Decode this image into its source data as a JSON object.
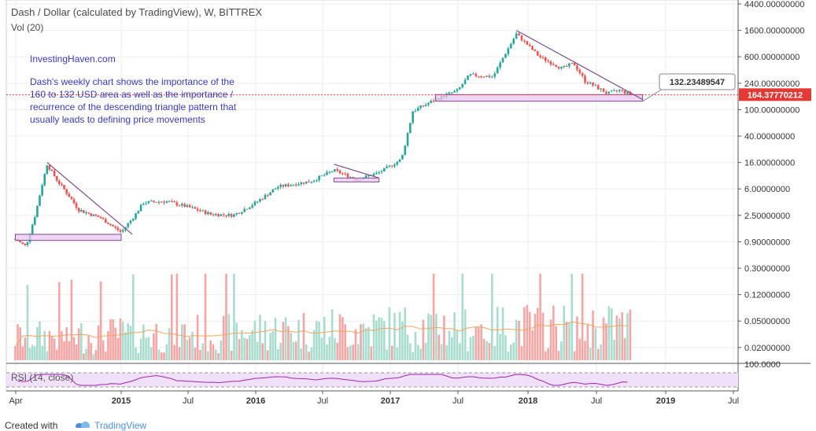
{
  "header": {
    "title": "Dash / Dollar (calculated by TradingView), W, BITTREX",
    "vol": "Vol (20)"
  },
  "annotation": {
    "brand": "InvestingHaven.com",
    "note": "Dash's weekly chart shows the importance of the 160 to 132 USD area as well as the importance / recurrence of the descending triangle pattern that usually leads to defining price movements"
  },
  "footer": {
    "created": "Created with",
    "brand": "TradingView"
  },
  "colors": {
    "up": "#26a69a",
    "down": "#ef5350",
    "vol_ma": "#f4a460",
    "rsi": "#9c27b0",
    "zone": "#e8c8f0",
    "pattern": "#7e4a8c",
    "price_label": "#e53935"
  },
  "chart_data": {
    "type": "candlestick",
    "title": "Dash / Dollar (calculated by TradingView), W, BITTREX",
    "scale": "log",
    "y_ticks": [
      "4400.00000000",
      "1600.00000000",
      "600.00000000",
      "240.00000000",
      "100.00000000",
      "40.00000000",
      "16.00000000",
      "6.00000000",
      "2.50000000",
      "0.90000000",
      "0.30000000",
      "0.12000000",
      "0.05000000",
      "0.02000000"
    ],
    "x_ticks": [
      "Apr",
      "2015",
      "Jul",
      "2016",
      "Jul",
      "2017",
      "Jul",
      "2018",
      "Jul",
      "2019",
      "Jul"
    ],
    "price_path": [
      [
        "2014-03",
        1.0
      ],
      [
        "2014-04",
        0.75
      ],
      [
        "2014-05",
        3.0
      ],
      [
        "2014-06",
        15.0
      ],
      [
        "2014-07",
        8.0
      ],
      [
        "2014-09",
        3.0
      ],
      [
        "2014-11",
        2.3
      ],
      [
        "2015-01",
        1.3
      ],
      [
        "2015-03",
        3.8
      ],
      [
        "2015-05",
        4.0
      ],
      [
        "2015-07",
        3.3
      ],
      [
        "2015-09",
        2.6
      ],
      [
        "2015-11",
        2.5
      ],
      [
        "2016-01",
        3.8
      ],
      [
        "2016-03",
        6.5
      ],
      [
        "2016-06",
        8.0
      ],
      [
        "2016-08",
        12.0
      ],
      [
        "2016-10",
        8.5
      ],
      [
        "2016-12",
        11.0
      ],
      [
        "2017-02",
        18.0
      ],
      [
        "2017-03",
        95.0
      ],
      [
        "2017-05",
        140.0
      ],
      [
        "2017-07",
        190.0
      ],
      [
        "2017-08",
        320.0
      ],
      [
        "2017-10",
        300.0
      ],
      [
        "2017-12",
        1400.0
      ],
      [
        "2018-02",
        600.0
      ],
      [
        "2018-04",
        400.0
      ],
      [
        "2018-05",
        480.0
      ],
      [
        "2018-06",
        260.0
      ],
      [
        "2018-08",
        170.0
      ],
      [
        "2018-09",
        190.0
      ],
      [
        "2018-10",
        164.0
      ]
    ],
    "horizontal_zones": [
      {
        "from": "2014-03",
        "to": "2015-01",
        "low": 0.95,
        "high": 1.2
      },
      {
        "from": "2016-08",
        "to": "2016-12",
        "low": 7.8,
        "high": 9.0
      },
      {
        "from": "2017-05",
        "to": "2018-11",
        "low": 132.23489547,
        "high": 164.37770212
      }
    ],
    "trend_lines": [
      {
        "from": [
          "2014-06",
          16.0
        ],
        "to": [
          "2015-02",
          1.2
        ]
      },
      {
        "from": [
          "2016-08",
          15.0
        ],
        "to": [
          "2016-12",
          9.0
        ]
      },
      {
        "from": [
          "2017-12",
          1600.0
        ],
        "to": [
          "2018-11",
          140.0
        ]
      }
    ],
    "labels": {
      "triangle_apex": "132.23489547",
      "last_price": "164.37770212"
    },
    "volume_panel": {
      "title": "Vol (20)"
    },
    "rsi_panel": {
      "title": "RSI (14, close)",
      "top_tick": "100.0000"
    }
  }
}
